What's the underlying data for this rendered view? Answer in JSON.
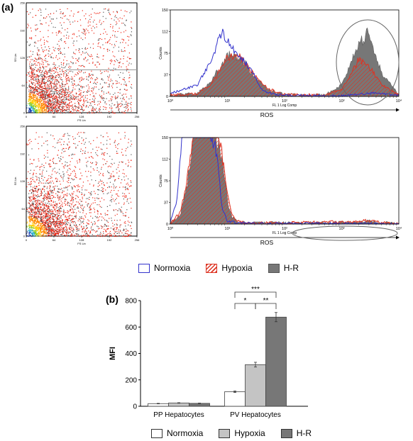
{
  "panel_a_label": "(a)",
  "panel_b_label": "(b)",
  "legend_a": [
    {
      "label": "Normoxia",
      "style": "outline",
      "color": "#3333cc"
    },
    {
      "label": "Hypoxia",
      "style": "hatched",
      "color": "#dd3322"
    },
    {
      "label": "H-R",
      "style": "filled",
      "color": "#777777"
    }
  ],
  "legend_b": [
    {
      "label": "Normoxia",
      "color": "#ffffff"
    },
    {
      "label": "Hypoxia",
      "color": "#c4c4c4"
    },
    {
      "label": "H-R",
      "color": "#777777"
    }
  ],
  "colors": {
    "normoxia": "#3333cc",
    "hypoxia": "#dd3322",
    "hr": "#777777"
  },
  "chart_data": [
    {
      "type": "scatter",
      "panel": "a-top-left",
      "xlabel": "FS Lin",
      "ylabel": "SS Lin",
      "xticks": [
        "0",
        "64",
        "128",
        "192",
        "256"
      ],
      "yticks": [
        "0",
        "64",
        "128",
        "192",
        "256"
      ],
      "xlim": [
        0,
        256
      ],
      "ylim": [
        0,
        256
      ],
      "gate_y": 100
    },
    {
      "type": "area",
      "panel": "a-top-right",
      "xlabel": "FL 1 Log Comp",
      "ylabel": "Counts",
      "axis_title": "ROS",
      "x_scale": "log",
      "xlim": [
        1,
        10000
      ],
      "ylim": [
        0,
        150
      ],
      "yticks": [
        "0",
        "37",
        "75",
        "112",
        "150"
      ],
      "xticks": [
        "10⁰",
        "10¹",
        "10²",
        "10³",
        "10⁴"
      ],
      "annotation": "ellipse around 10^3-10^4 peak",
      "series": [
        {
          "name": "Normoxia",
          "x": [
            1,
            3,
            5,
            7,
            8,
            10,
            14,
            20,
            30,
            40,
            60,
            100,
            300,
            1000,
            2000,
            4000,
            10000
          ],
          "y": [
            5,
            20,
            60,
            98,
            110,
            95,
            78,
            62,
            35,
            12,
            4,
            2,
            1,
            1,
            4,
            6,
            2
          ]
        },
        {
          "name": "Hypoxia",
          "x": [
            1,
            3,
            5,
            8,
            10,
            14,
            20,
            30,
            50,
            100,
            500,
            1000,
            1500,
            2000,
            3000,
            5000,
            10000
          ],
          "y": [
            2,
            5,
            20,
            50,
            68,
            72,
            60,
            38,
            14,
            3,
            2,
            12,
            40,
            65,
            52,
            20,
            3
          ]
        },
        {
          "name": "H-R",
          "x": [
            1,
            3,
            5,
            8,
            10,
            14,
            20,
            30,
            50,
            100,
            500,
            1000,
            1500,
            2000,
            3000,
            5000,
            10000
          ],
          "y": [
            2,
            5,
            25,
            55,
            75,
            68,
            58,
            34,
            12,
            3,
            2,
            20,
            60,
            90,
            110,
            40,
            4
          ]
        }
      ]
    },
    {
      "type": "scatter",
      "panel": "a-bottom-left",
      "xlabel": "FS Lin",
      "ylabel": "SS Lin",
      "xticks": [
        "0",
        "64",
        "128",
        "192",
        "256"
      ],
      "yticks": [
        "0",
        "64",
        "128",
        "192",
        "256"
      ],
      "xlim": [
        0,
        256
      ],
      "ylim": [
        0,
        256
      ]
    },
    {
      "type": "area",
      "panel": "a-bottom-right",
      "xlabel": "FL 1 Log Comp",
      "ylabel": "Counts",
      "axis_title": "ROS",
      "x_scale": "log",
      "xlim": [
        1,
        10000
      ],
      "ylim": [
        0,
        150
      ],
      "yticks": [
        "0",
        "37",
        "75",
        "112",
        "150"
      ],
      "xticks": [
        "10⁰",
        "10¹",
        "10²",
        "10³",
        "10⁴"
      ],
      "annotation": "ellipse around 10^2-10^4 region",
      "series": [
        {
          "name": "Normoxia",
          "x": [
            1,
            1.3,
            1.6,
            2,
            3,
            4,
            5,
            6,
            7,
            8,
            10,
            15,
            30,
            100,
            1000,
            10000
          ],
          "y": [
            3,
            40,
            150,
            150,
            150,
            150,
            150,
            140,
            90,
            30,
            5,
            2,
            1,
            1,
            1,
            0
          ]
        },
        {
          "name": "Hypoxia",
          "x": [
            1,
            1.5,
            2,
            2.5,
            3,
            4,
            5,
            6,
            7,
            8,
            10,
            12,
            15,
            20,
            100,
            1000,
            3000,
            10000
          ],
          "y": [
            2,
            20,
            80,
            150,
            150,
            150,
            150,
            150,
            150,
            120,
            50,
            15,
            5,
            2,
            2,
            4,
            6,
            0
          ]
        },
        {
          "name": "H-R",
          "x": [
            1,
            1.5,
            2,
            2.5,
            3,
            4,
            5,
            6,
            7,
            8,
            10,
            12,
            15,
            20,
            100,
            1000,
            3000,
            10000
          ],
          "y": [
            2,
            15,
            70,
            150,
            150,
            150,
            150,
            150,
            140,
            110,
            40,
            12,
            4,
            2,
            2,
            3,
            5,
            0
          ]
        }
      ]
    },
    {
      "type": "bar",
      "panel": "b",
      "ylabel": "MFI",
      "ylim": [
        0,
        800
      ],
      "yticks": [
        "0",
        "200",
        "400",
        "600",
        "800"
      ],
      "categories": [
        "PP Hepatocytes",
        "PV Hepatocytes"
      ],
      "series": [
        {
          "name": "Normoxia",
          "values": [
            20,
            110
          ],
          "errors": [
            2,
            6
          ]
        },
        {
          "name": "Hypoxia",
          "values": [
            25,
            315
          ],
          "errors": [
            2,
            18
          ]
        },
        {
          "name": "H-R",
          "values": [
            22,
            675
          ],
          "errors": [
            2,
            35
          ]
        }
      ],
      "significance": [
        {
          "label": "***",
          "from": "Normoxia",
          "to": "H-R"
        },
        {
          "label": "*",
          "from": "Normoxia",
          "to": "Hypoxia"
        },
        {
          "label": "**",
          "from": "Hypoxia",
          "to": "H-R"
        }
      ]
    }
  ]
}
